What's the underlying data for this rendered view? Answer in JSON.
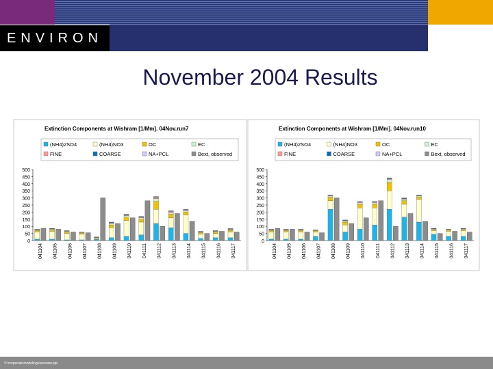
{
  "slide": {
    "logo": "ENVIRON",
    "title": "November 2004 Results",
    "footer": "V:\\corporate\\modeling\\overview.ppt"
  },
  "chart_data": [
    {
      "type": "bar",
      "title": "Extinction Components at Wishram [1/Mm].  04Nov.run7",
      "categories": [
        "041104",
        "041105",
        "041106",
        "041107",
        "041108",
        "041109",
        "041110",
        "041111",
        "041112",
        "041113",
        "041114",
        "041115",
        "041116",
        "041117"
      ],
      "ylim": [
        0,
        500
      ],
      "yticks": [
        0,
        50,
        100,
        150,
        200,
        250,
        300,
        350,
        400,
        450,
        500
      ],
      "series": [
        {
          "name": "(NH4)2SO4",
          "color": "#1fb4e8",
          "values": [
            10,
            10,
            5,
            5,
            10,
            20,
            30,
            40,
            120,
            90,
            50,
            15,
            20,
            20
          ]
        },
        {
          "name": "(NH4)NO3",
          "color": "#ffffcc",
          "values": [
            50,
            55,
            45,
            40,
            5,
            70,
            110,
            90,
            100,
            70,
            130,
            30,
            30,
            40
          ]
        },
        {
          "name": "OC",
          "color": "#f2c200",
          "values": [
            10,
            10,
            10,
            8,
            5,
            20,
            25,
            20,
            55,
            25,
            20,
            10,
            10,
            12
          ]
        },
        {
          "name": "EC",
          "color": "#ccf2cc",
          "values": [
            5,
            5,
            5,
            4,
            3,
            10,
            10,
            10,
            20,
            10,
            10,
            5,
            5,
            6
          ]
        },
        {
          "name": "FINE",
          "color": "#ff9999",
          "values": [
            2,
            2,
            2,
            1,
            1,
            5,
            5,
            5,
            10,
            10,
            5,
            2,
            2,
            3
          ]
        },
        {
          "name": "COARSE",
          "color": "#0070c0",
          "values": [
            2,
            2,
            2,
            1,
            1,
            3,
            3,
            3,
            3,
            3,
            3,
            2,
            2,
            2
          ]
        },
        {
          "name": "NA+PCL",
          "color": "#ccccff",
          "values": [
            1,
            1,
            1,
            1,
            0,
            2,
            2,
            2,
            2,
            2,
            2,
            1,
            1,
            2
          ]
        },
        {
          "name": "Bext, observed",
          "color": "#8c8c8c",
          "values": [
            85,
            80,
            60,
            55,
            300,
            120,
            160,
            280,
            100,
            190,
            135,
            50,
            65,
            60
          ]
        }
      ]
    },
    {
      "type": "bar",
      "title": "Extinction Components at Wishram [1/Mm].  04Nov.run10",
      "categories": [
        "041104",
        "041105",
        "041106",
        "041107",
        "041108",
        "041109",
        "041110",
        "041111",
        "041112",
        "041113",
        "041114",
        "041115",
        "041116",
        "041117"
      ],
      "ylim": [
        0,
        500
      ],
      "yticks": [
        0,
        50,
        100,
        150,
        200,
        250,
        300,
        350,
        400,
        450,
        500
      ],
      "series": [
        {
          "name": "(NH4)2SO4",
          "color": "#1fb4e8",
          "values": [
            10,
            10,
            10,
            30,
            220,
            60,
            80,
            110,
            220,
            165,
            130,
            45,
            30,
            30
          ]
        },
        {
          "name": "(NH4)NO3",
          "color": "#ffffcc",
          "values": [
            50,
            50,
            50,
            30,
            60,
            50,
            150,
            120,
            130,
            90,
            160,
            25,
            35,
            40
          ]
        },
        {
          "name": "OC",
          "color": "#f2c200",
          "values": [
            10,
            10,
            10,
            8,
            25,
            20,
            25,
            25,
            60,
            25,
            15,
            8,
            8,
            8
          ]
        },
        {
          "name": "EC",
          "color": "#ccf2cc",
          "values": [
            5,
            5,
            5,
            4,
            8,
            8,
            10,
            10,
            20,
            10,
            8,
            4,
            4,
            4
          ]
        },
        {
          "name": "FINE",
          "color": "#ff9999",
          "values": [
            2,
            2,
            2,
            1,
            3,
            3,
            5,
            5,
            5,
            5,
            3,
            1,
            1,
            1
          ]
        },
        {
          "name": "COARSE",
          "color": "#0070c0",
          "values": [
            2,
            2,
            2,
            1,
            2,
            2,
            3,
            3,
            3,
            3,
            2,
            1,
            1,
            1
          ]
        },
        {
          "name": "NA+PCL",
          "color": "#ccccff",
          "values": [
            1,
            1,
            1,
            1,
            2,
            2,
            2,
            2,
            2,
            2,
            2,
            1,
            1,
            1
          ]
        },
        {
          "name": "Bext, observed",
          "color": "#8c8c8c",
          "values": [
            85,
            80,
            60,
            55,
            300,
            120,
            160,
            280,
            100,
            190,
            135,
            50,
            65,
            60
          ]
        }
      ]
    }
  ]
}
